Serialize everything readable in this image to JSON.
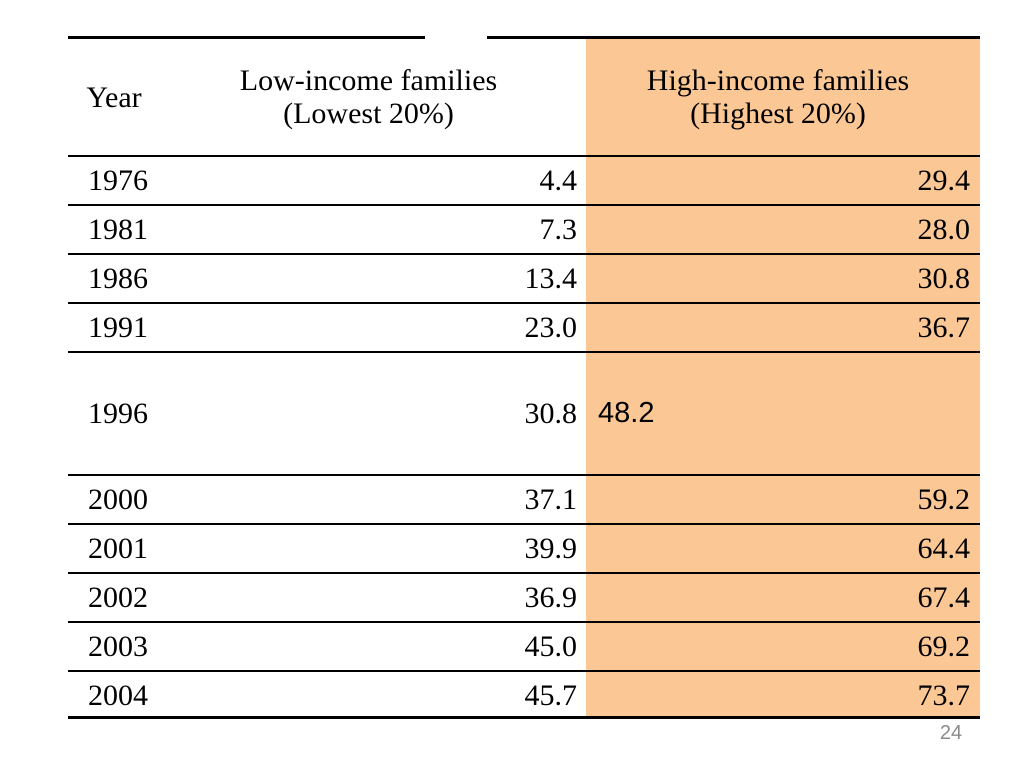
{
  "page": {
    "number": "24"
  },
  "colors": {
    "highlight": "#FBC795",
    "line": "#000000",
    "page_number": "#8a8a8a"
  },
  "table": {
    "header": {
      "year": "Year",
      "low_line1": "Low-income families",
      "low_line2": "(Lowest 20%)",
      "high_line1": "High-income families",
      "high_line2": "(Highest 20%)"
    },
    "rows": [
      {
        "year": "1976",
        "low": "4.4",
        "high": "29.4"
      },
      {
        "year": "1981",
        "low": "7.3",
        "high": "28.0"
      },
      {
        "year": "1986",
        "low": "13.4",
        "high": "30.8"
      },
      {
        "year": "1991",
        "low": "23.0",
        "high": "36.7"
      },
      {
        "year": "1996",
        "low": "30.8",
        "high": "48.2"
      },
      {
        "year": "2000",
        "low": "37.1",
        "high": "59.2"
      },
      {
        "year": "2001",
        "low": "39.9",
        "high": "64.4"
      },
      {
        "year": "2002",
        "low": "36.9",
        "high": "67.4"
      },
      {
        "year": "2003",
        "low": "45.0",
        "high": "69.2"
      },
      {
        "year": "2004",
        "low": "45.7",
        "high": "73.7"
      }
    ]
  },
  "chart_data": {
    "type": "table",
    "title": "",
    "columns": [
      "Year",
      "Low-income families (Lowest 20%)",
      "High-income families (Highest 20%)"
    ],
    "rows": [
      [
        1976,
        4.4,
        29.4
      ],
      [
        1981,
        7.3,
        28.0
      ],
      [
        1986,
        13.4,
        30.8
      ],
      [
        1991,
        23.0,
        36.7
      ],
      [
        1996,
        30.8,
        48.2
      ],
      [
        2000,
        37.1,
        59.2
      ],
      [
        2001,
        39.9,
        64.4
      ],
      [
        2002,
        36.9,
        67.4
      ],
      [
        2003,
        45.0,
        69.2
      ],
      [
        2004,
        45.7,
        73.7
      ]
    ],
    "layout_hints": {
      "highlighted_column": "High-income families (Highest 20%)",
      "highlight_color": "#FBC795",
      "grid": "horizontal-rules-only"
    }
  }
}
